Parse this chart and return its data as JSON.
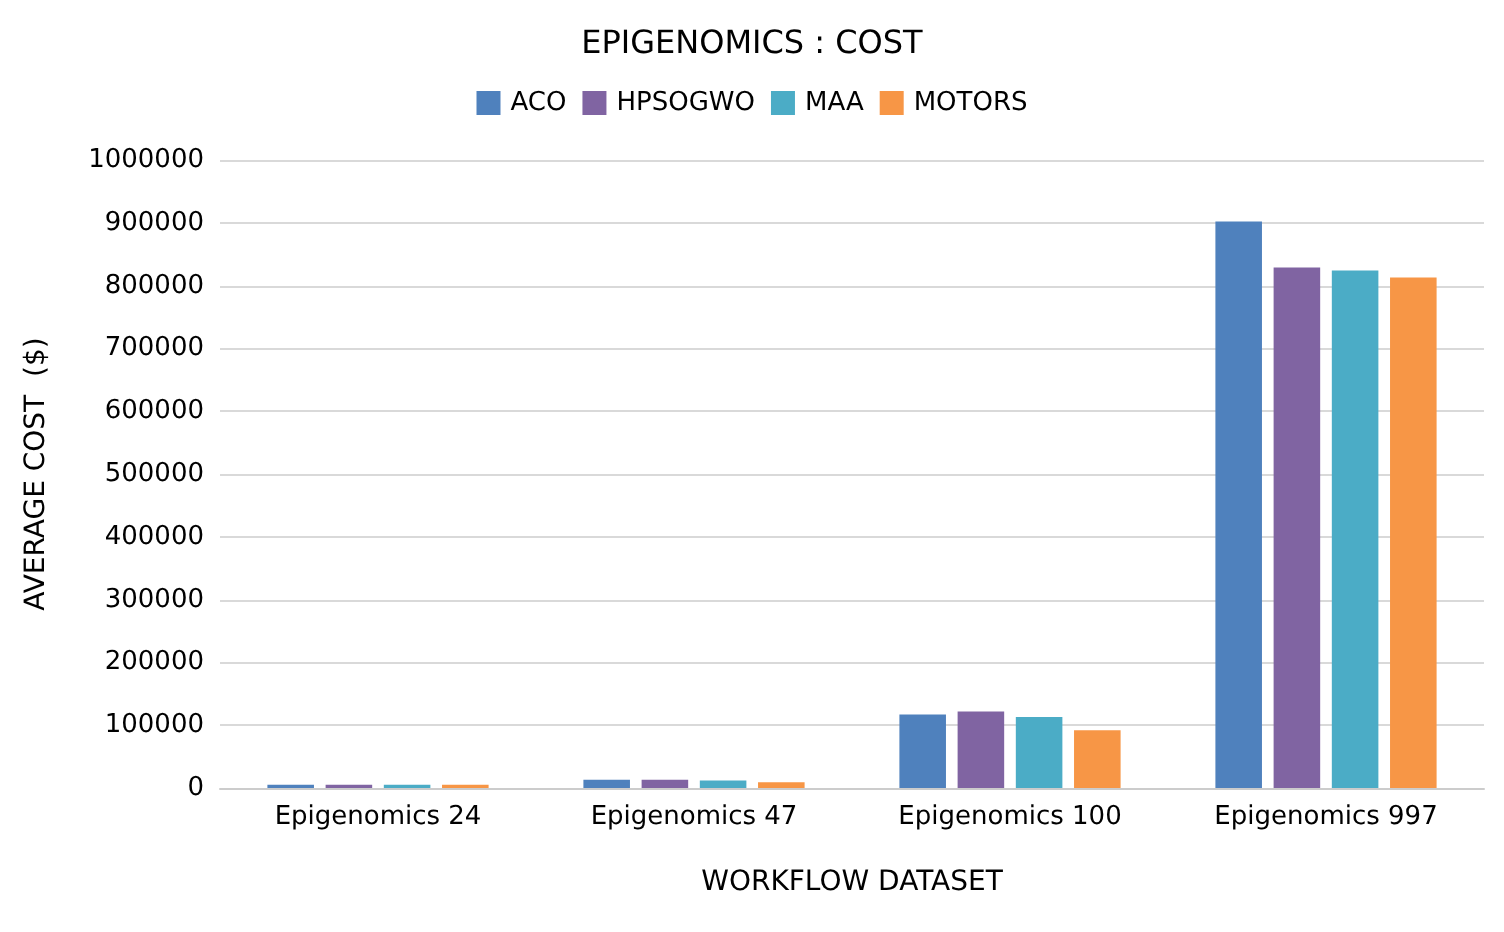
{
  "chart_data": {
    "type": "bar",
    "title": "EPIGENOMICS : COST",
    "xlabel": "WORKFLOW DATASET",
    "ylabel": "AVERAGE COST  ($)",
    "categories": [
      "Epigenomics 24",
      "Epigenomics 47",
      "Epigenomics 100",
      "Epigenomics 997"
    ],
    "series": [
      {
        "name": "ACO",
        "color": "#4f81bd",
        "values": [
          5000,
          13000,
          117000,
          902000
        ]
      },
      {
        "name": "HPSOGWO",
        "color": "#8064a2",
        "values": [
          5000,
          13000,
          122000,
          829000
        ]
      },
      {
        "name": "MAA",
        "color": "#4bacc6",
        "values": [
          5000,
          12000,
          113000,
          824000
        ]
      },
      {
        "name": "MOTORS",
        "color": "#f79646",
        "values": [
          5000,
          9000,
          92000,
          813000
        ]
      }
    ],
    "ylim": [
      0,
      1000000
    ],
    "yticks": [
      0,
      100000,
      200000,
      300000,
      400000,
      500000,
      600000,
      700000,
      800000,
      900000,
      1000000
    ],
    "grid": "y",
    "legend": "top"
  }
}
